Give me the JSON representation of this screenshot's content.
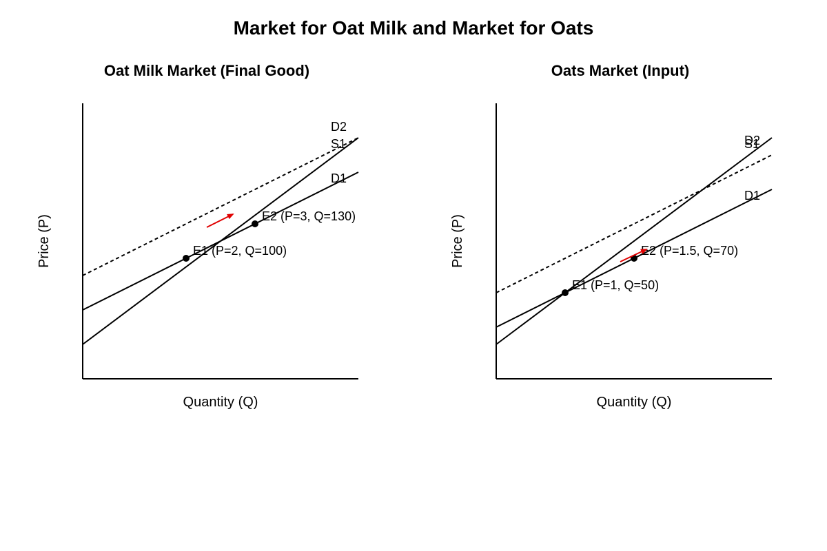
{
  "title": "Market for Oat Milk and Market for Oats",
  "colors": {
    "line": "#000000",
    "shift_arrow": "#e00000",
    "point": "#000000"
  },
  "panels": [
    {
      "title": "Oat Milk Market (Final Good)",
      "xlabel": "Quantity (Q)",
      "ylabel": "Price (P)",
      "curves": [
        {
          "label": "D2",
          "style": "solid"
        },
        {
          "label": "S1",
          "style": "dashed"
        },
        {
          "label": "D1",
          "style": "solid"
        }
      ],
      "points": [
        {
          "label": "E1 (P=2, Q=100)"
        },
        {
          "label": "E2 (P=3, Q=130)"
        }
      ]
    },
    {
      "title": "Oats Market (Input)",
      "xlabel": "Quantity (Q)",
      "ylabel": "Price (P)",
      "curves": [
        {
          "label": "D2",
          "style": "solid"
        },
        {
          "label": "S1",
          "style": "dashed"
        },
        {
          "label": "D1",
          "style": "solid"
        }
      ],
      "points": [
        {
          "label": "E1 (P=1, Q=50)"
        },
        {
          "label": "E2 (P=1.5, Q=70)"
        }
      ]
    }
  ]
}
